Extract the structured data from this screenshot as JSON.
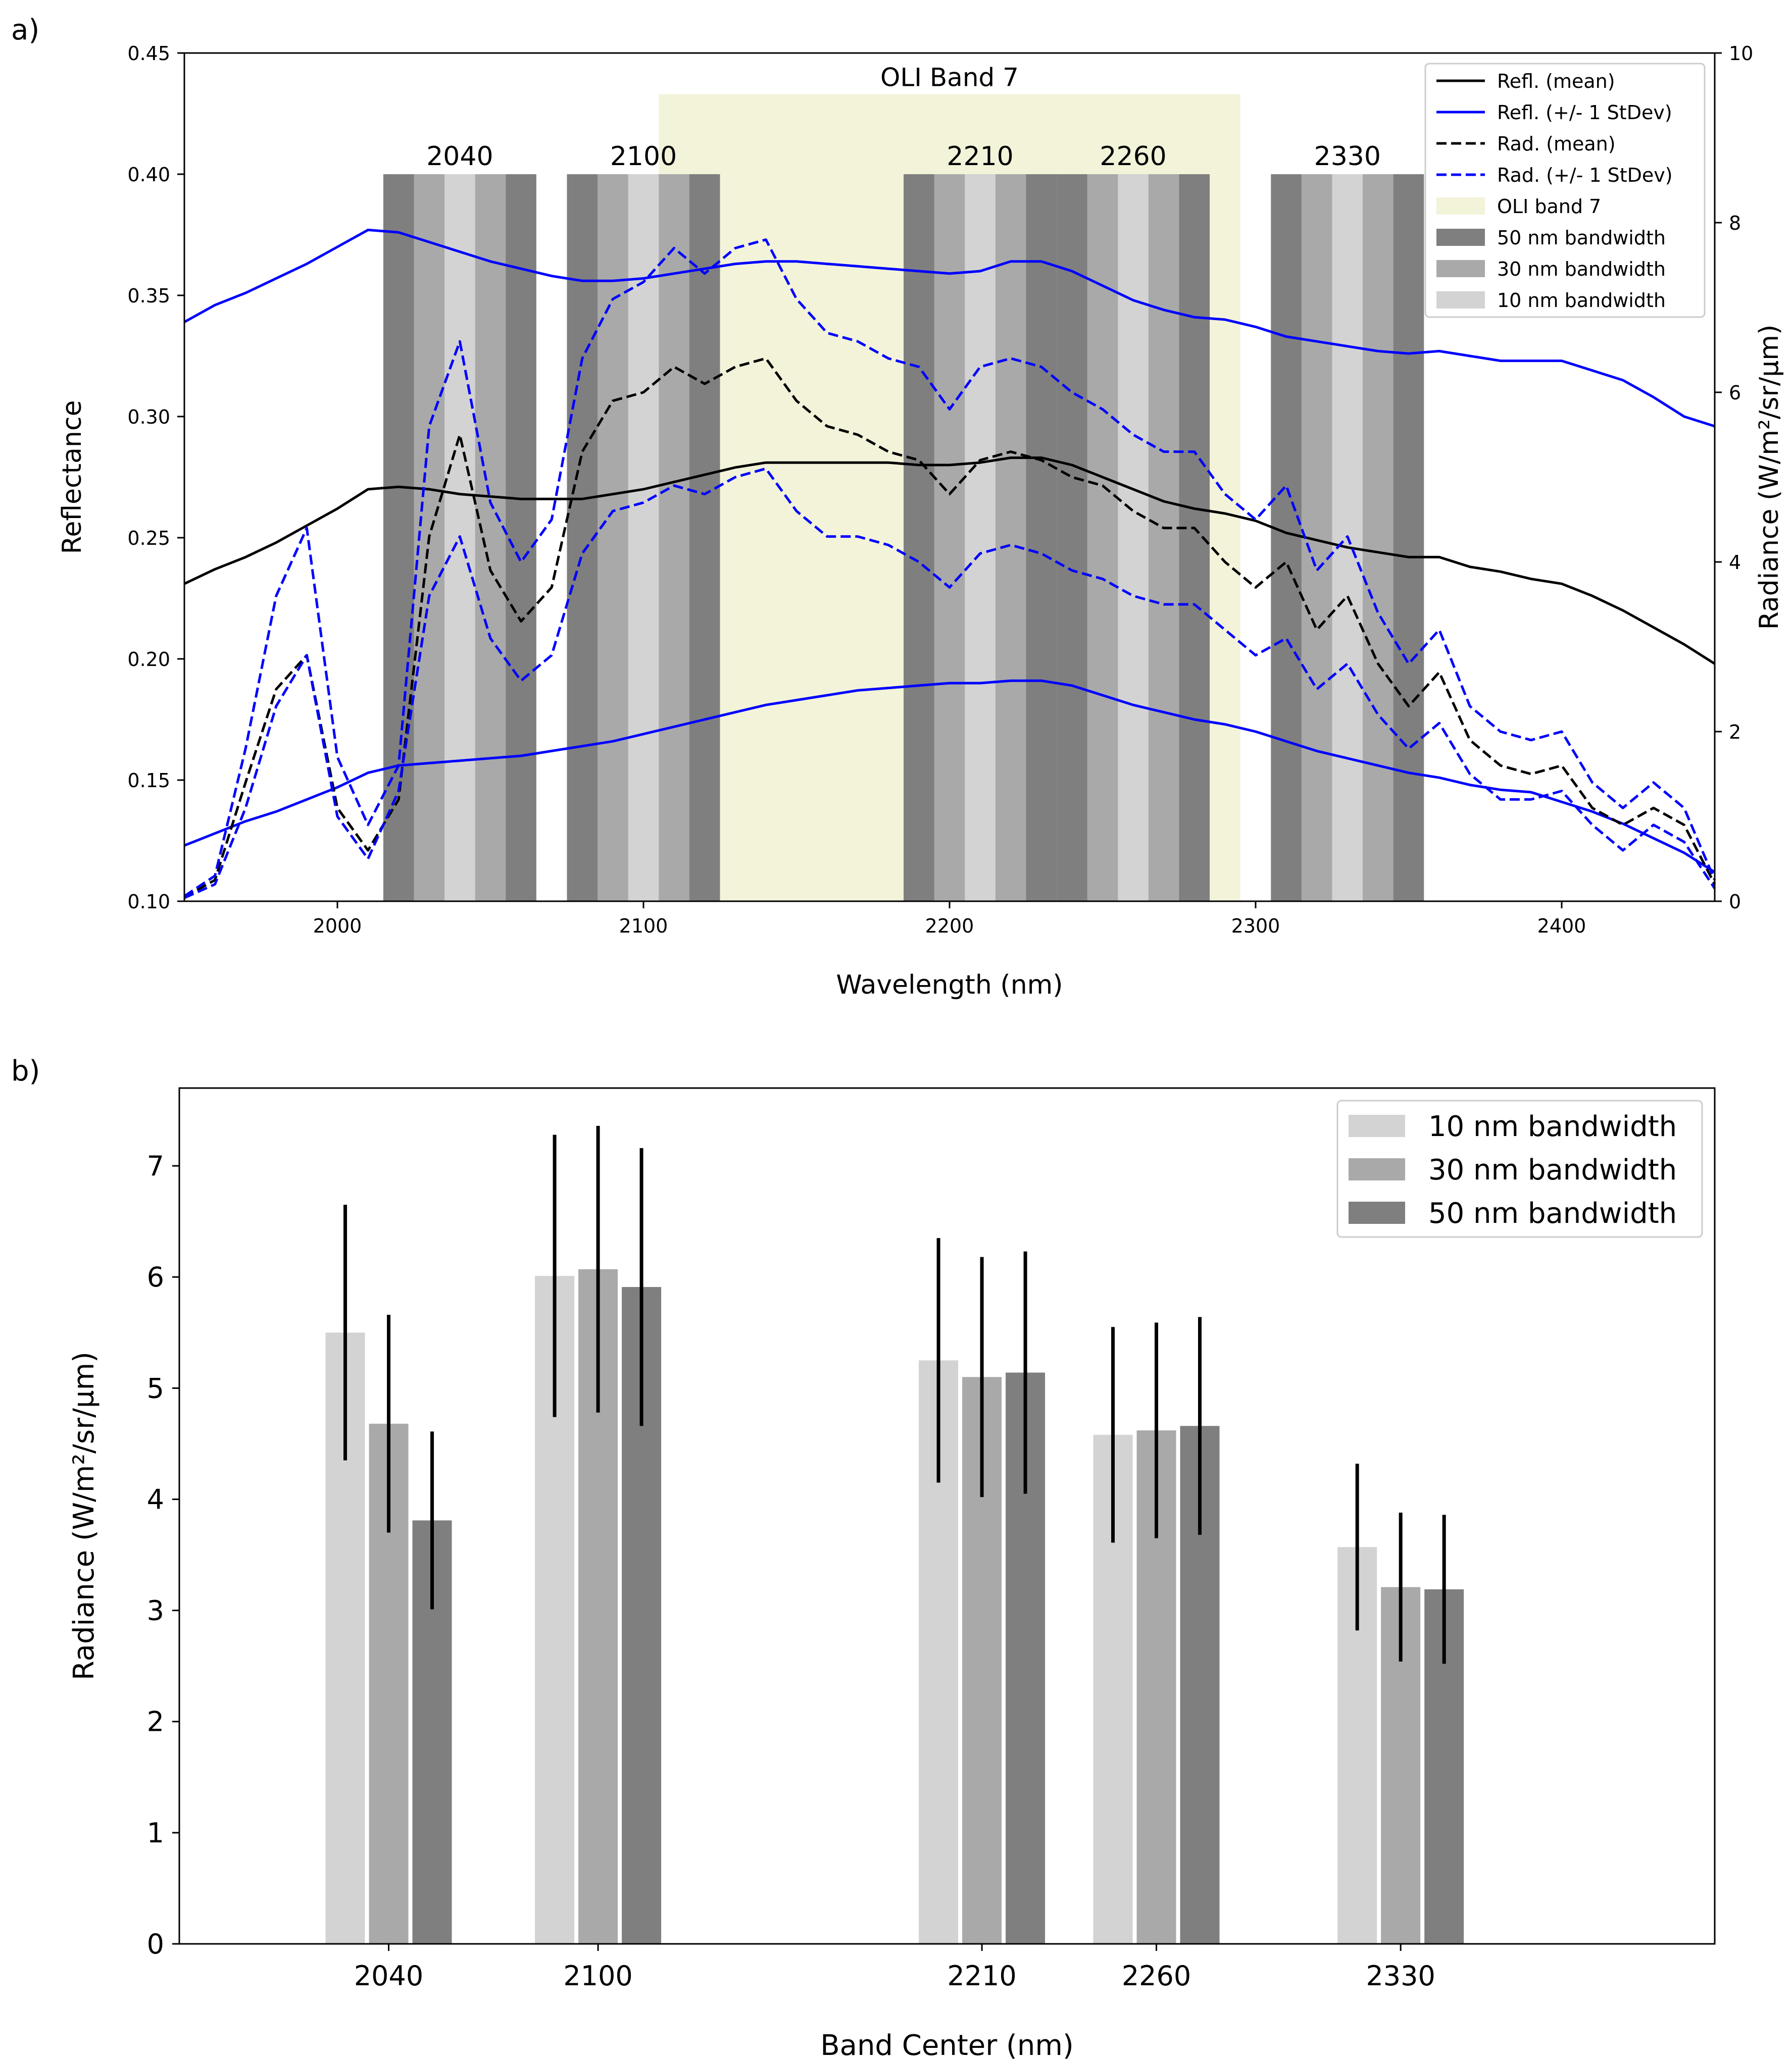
{
  "panel_labels": [
    "a)",
    "b)"
  ],
  "chart_data": [
    {
      "type": "line",
      "title": "",
      "xlabel": "Wavelength (nm)",
      "ylabel_left": "Reflectance",
      "ylabel_right": "Radiance (W/m²/sr/µm)",
      "xlim": [
        1950,
        2450
      ],
      "ylim_left": [
        0.1,
        0.45
      ],
      "ylim_right": [
        0,
        10
      ],
      "x_ticks": [
        2000,
        2100,
        2200,
        2300,
        2400
      ],
      "y_ticks_left": [
        0.1,
        0.15,
        0.2,
        0.25,
        0.3,
        0.35,
        0.4,
        0.45
      ],
      "y_ticks_right": [
        0,
        2,
        4,
        6,
        8,
        10
      ],
      "tick_labels_left": [
        "0.10",
        "0.15",
        "0.20",
        "0.25",
        "0.30",
        "0.35",
        "0.40",
        "0.45"
      ],
      "x": [
        1950,
        1960,
        1970,
        1980,
        1990,
        2000,
        2010,
        2020,
        2030,
        2040,
        2050,
        2060,
        2070,
        2080,
        2090,
        2100,
        2110,
        2120,
        2130,
        2140,
        2150,
        2160,
        2170,
        2180,
        2190,
        2200,
        2210,
        2220,
        2230,
        2240,
        2250,
        2260,
        2270,
        2280,
        2290,
        2300,
        2310,
        2320,
        2330,
        2340,
        2350,
        2360,
        2370,
        2380,
        2390,
        2400,
        2410,
        2420,
        2430,
        2440,
        2450
      ],
      "series": [
        {
          "name": "Refl. (mean)",
          "axis": "left",
          "color": "#000000",
          "style": "solid",
          "values": [
            0.231,
            0.237,
            0.242,
            0.248,
            0.255,
            0.262,
            0.27,
            0.271,
            0.27,
            0.268,
            0.267,
            0.266,
            0.266,
            0.266,
            0.268,
            0.27,
            0.273,
            0.276,
            0.279,
            0.281,
            0.281,
            0.281,
            0.281,
            0.281,
            0.28,
            0.28,
            0.281,
            0.283,
            0.283,
            0.28,
            0.275,
            0.27,
            0.265,
            0.262,
            0.26,
            0.257,
            0.252,
            0.249,
            0.246,
            0.244,
            0.242,
            0.242,
            0.238,
            0.236,
            0.233,
            0.231,
            0.226,
            0.22,
            0.213,
            0.206,
            0.198
          ]
        },
        {
          "name": "Refl. (+/- 1 StDev) upper",
          "legend": "Refl. (+/- 1 StDev)",
          "axis": "left",
          "color": "#0000ff",
          "style": "solid",
          "values": [
            0.339,
            0.346,
            0.351,
            0.357,
            0.363,
            0.37,
            0.377,
            0.376,
            0.372,
            0.368,
            0.364,
            0.361,
            0.358,
            0.356,
            0.356,
            0.357,
            0.359,
            0.361,
            0.363,
            0.364,
            0.364,
            0.363,
            0.362,
            0.361,
            0.36,
            0.359,
            0.36,
            0.364,
            0.364,
            0.36,
            0.354,
            0.348,
            0.344,
            0.341,
            0.34,
            0.337,
            0.333,
            0.331,
            0.329,
            0.327,
            0.326,
            0.327,
            0.325,
            0.323,
            0.323,
            0.323,
            0.319,
            0.315,
            0.308,
            0.3,
            0.296
          ]
        },
        {
          "name": "Refl. (+/- 1 StDev) lower",
          "axis": "left",
          "color": "#0000ff",
          "style": "solid",
          "values": [
            0.123,
            0.128,
            0.133,
            0.137,
            0.142,
            0.147,
            0.153,
            0.156,
            0.157,
            0.158,
            0.159,
            0.16,
            0.162,
            0.164,
            0.166,
            0.169,
            0.172,
            0.175,
            0.178,
            0.181,
            0.183,
            0.185,
            0.187,
            0.188,
            0.189,
            0.19,
            0.19,
            0.191,
            0.191,
            0.189,
            0.185,
            0.181,
            0.178,
            0.175,
            0.173,
            0.17,
            0.166,
            0.162,
            0.159,
            0.156,
            0.153,
            0.151,
            0.148,
            0.146,
            0.145,
            0.141,
            0.137,
            0.132,
            0.126,
            0.12,
            0.112
          ]
        },
        {
          "name": "Rad. (mean)",
          "axis": "right",
          "color": "#000000",
          "style": "dashed",
          "values": [
            0.05,
            0.25,
            1.4,
            2.5,
            2.9,
            1.1,
            0.6,
            1.2,
            4.3,
            5.5,
            3.9,
            3.3,
            3.7,
            5.3,
            5.9,
            6.0,
            6.3,
            6.1,
            6.3,
            6.4,
            5.9,
            5.6,
            5.5,
            5.3,
            5.2,
            4.8,
            5.2,
            5.3,
            5.2,
            5.0,
            4.9,
            4.6,
            4.4,
            4.4,
            4.0,
            3.7,
            4.0,
            3.2,
            3.6,
            2.8,
            2.3,
            2.7,
            1.9,
            1.6,
            1.5,
            1.6,
            1.1,
            0.9,
            1.1,
            0.9,
            0.2
          ]
        },
        {
          "name": "Rad. (+/- 1 StDev) upper",
          "legend": "Rad. (+/- 1 StDev)",
          "axis": "right",
          "color": "#0000ff",
          "style": "dashed",
          "values": [
            0.06,
            0.3,
            1.8,
            3.6,
            4.4,
            1.7,
            0.9,
            1.6,
            5.6,
            6.6,
            4.7,
            4.0,
            4.5,
            6.4,
            7.1,
            7.3,
            7.7,
            7.4,
            7.7,
            7.8,
            7.1,
            6.7,
            6.6,
            6.4,
            6.3,
            5.8,
            6.3,
            6.4,
            6.3,
            6.0,
            5.8,
            5.5,
            5.3,
            5.3,
            4.8,
            4.5,
            4.9,
            3.9,
            4.3,
            3.4,
            2.8,
            3.2,
            2.3,
            2.0,
            1.9,
            2.0,
            1.4,
            1.1,
            1.4,
            1.1,
            0.25
          ]
        },
        {
          "name": "Rad. (+/- 1 StDev) lower",
          "axis": "right",
          "color": "#0000ff",
          "style": "dashed",
          "values": [
            0.04,
            0.2,
            1.1,
            2.3,
            2.9,
            1.0,
            0.5,
            1.3,
            3.6,
            4.3,
            3.1,
            2.6,
            2.9,
            4.1,
            4.6,
            4.7,
            4.9,
            4.8,
            5.0,
            5.1,
            4.6,
            4.3,
            4.3,
            4.2,
            4.0,
            3.7,
            4.1,
            4.2,
            4.1,
            3.9,
            3.8,
            3.6,
            3.5,
            3.5,
            3.2,
            2.9,
            3.1,
            2.5,
            2.8,
            2.2,
            1.8,
            2.1,
            1.5,
            1.2,
            1.2,
            1.3,
            0.9,
            0.6,
            0.9,
            0.7,
            0.15
          ]
        }
      ],
      "spans": [
        {
          "name": "OLI band 7",
          "label": "OLI Band 7",
          "x0": 2105,
          "x1": 2295,
          "y_top_left": 0.433,
          "color": "#f3f3da"
        }
      ],
      "bands": [
        {
          "center": 2040,
          "label": "2040"
        },
        {
          "center": 2100,
          "label": "2100"
        },
        {
          "center": 2210,
          "label": "2210"
        },
        {
          "center": 2260,
          "label": "2260"
        },
        {
          "center": 2330,
          "label": "2330"
        }
      ],
      "band_widths_nm": [
        50,
        30,
        10
      ],
      "band_top_left": 0.4,
      "band_colors": {
        "50": "#7f7f7f",
        "30": "#a9a9a9",
        "10": "#d3d3d3"
      },
      "legend": {
        "placement": "upper right",
        "entries": [
          {
            "label": "Refl. (mean)",
            "kind": "line",
            "color": "#000000",
            "dash": false
          },
          {
            "label": "Refl. (+/- 1 StDev)",
            "kind": "line",
            "color": "#0000ff",
            "dash": false
          },
          {
            "label": "Rad. (mean)",
            "kind": "line",
            "color": "#000000",
            "dash": true
          },
          {
            "label": "Rad. (+/- 1 StDev)",
            "kind": "line",
            "color": "#0000ff",
            "dash": true
          },
          {
            "label": "OLI band 7",
            "kind": "patch",
            "color": "#f3f3da"
          },
          {
            "label": "50 nm bandwidth",
            "kind": "patch",
            "color": "#7f7f7f"
          },
          {
            "label": "30 nm bandwidth",
            "kind": "patch",
            "color": "#a9a9a9"
          },
          {
            "label": "10 nm bandwidth",
            "kind": "patch",
            "color": "#d3d3d3"
          }
        ]
      }
    },
    {
      "type": "bar",
      "title": "",
      "xlabel": "Band Center (nm)",
      "ylabel": "Radiance (W/m²/sr/µm)",
      "ylim": [
        0,
        7.7
      ],
      "y_ticks": [
        0,
        1,
        2,
        3,
        4,
        5,
        6,
        7
      ],
      "xlim": [
        1980,
        2420
      ],
      "categories": [
        "2040",
        "2100",
        "2210",
        "2260",
        "2330"
      ],
      "category_centers": [
        2040,
        2100,
        2210,
        2260,
        2330
      ],
      "series": [
        {
          "name": "10 nm bandwidth",
          "color": "#d3d3d3",
          "values": [
            5.5,
            6.01,
            5.25,
            4.58,
            3.57
          ],
          "errors": [
            1.15,
            1.27,
            1.1,
            0.97,
            0.75
          ]
        },
        {
          "name": "30 nm bandwidth",
          "color": "#a9a9a9",
          "values": [
            4.68,
            6.07,
            5.1,
            4.62,
            3.21
          ],
          "errors": [
            0.98,
            1.29,
            1.08,
            0.97,
            0.67
          ]
        },
        {
          "name": "50 nm bandwidth",
          "color": "#7f7f7f",
          "values": [
            3.81,
            5.91,
            5.14,
            4.66,
            3.19
          ],
          "errors": [
            0.8,
            1.25,
            1.09,
            0.98,
            0.67
          ]
        }
      ],
      "legend": {
        "placement": "upper right"
      }
    }
  ]
}
